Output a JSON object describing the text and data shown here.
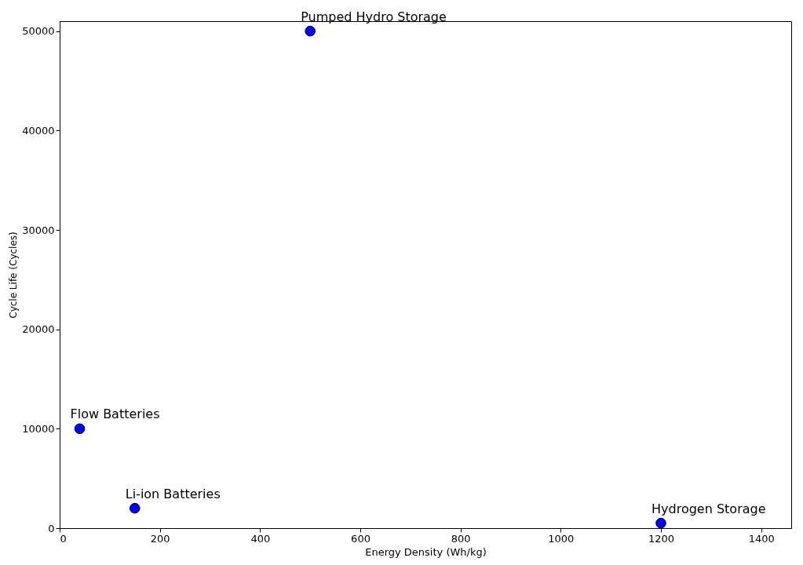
{
  "chart_data": {
    "type": "scatter",
    "xlabel": "Energy Density (Wh/kg)",
    "ylabel": "Cycle Life (Cycles)",
    "x": [
      150,
      40,
      500,
      1200
    ],
    "series": [
      {
        "color": "#0000ff",
        "values": [
          2000,
          10000,
          50000,
          500
        ]
      }
    ],
    "xlim": [
      0,
      1460
    ],
    "xticks": [
      0,
      200,
      400,
      600,
      800,
      1000,
      1200,
      1400
    ],
    "ylim": [
      0,
      51000
    ],
    "yticks": [
      0,
      10000,
      20000,
      30000,
      40000,
      50000
    ],
    "grid": false,
    "marker": "circle",
    "annotations": [
      {
        "text": "Li-ion Batteries",
        "x": 150,
        "y": 2000
      },
      {
        "text": "Flow Batteries",
        "x": 40,
        "y": 10000
      },
      {
        "text": "Pumped Hydro Storage",
        "x": 500,
        "y": 50000
      },
      {
        "text": "Hydrogen Storage",
        "x": 1200,
        "y": 500
      }
    ]
  }
}
